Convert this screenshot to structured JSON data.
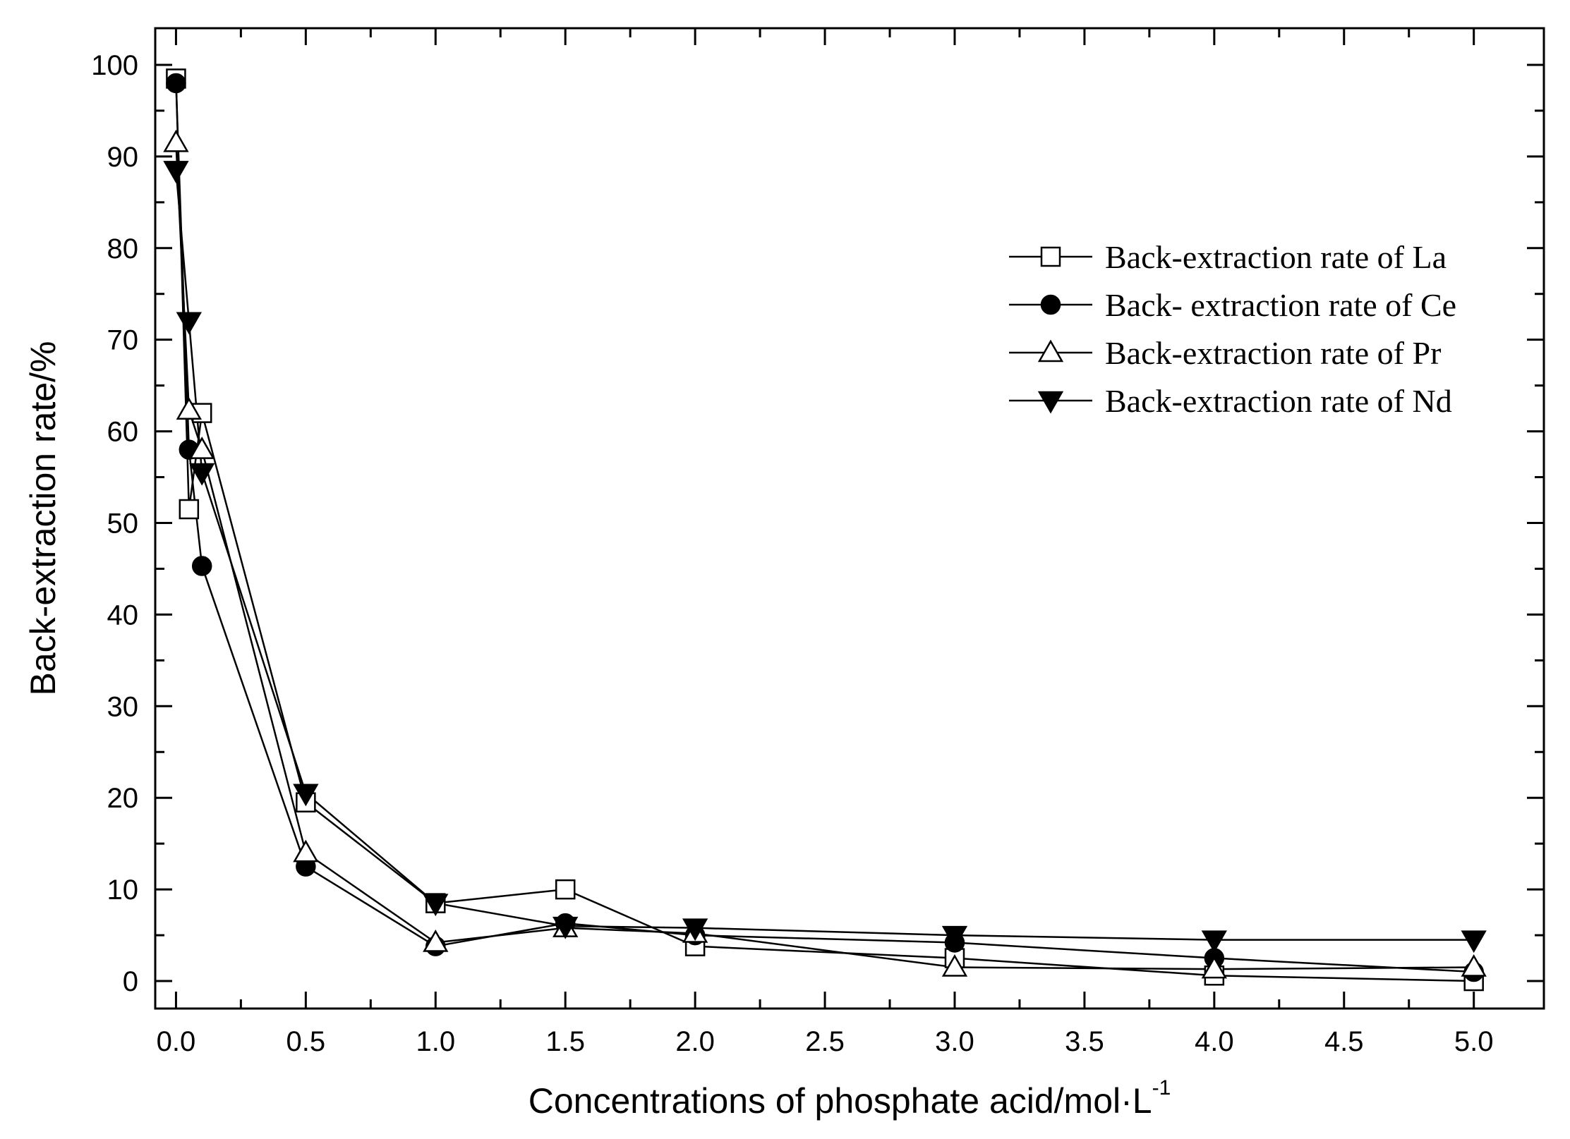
{
  "chart_data": {
    "type": "line",
    "xlabel": "Concentrations of phosphate acid/mol·L",
    "xlabel_superscript": "-1",
    "ylabel": "Back-extraction rate/%",
    "xlim": [
      -0.08,
      5.27
    ],
    "ylim": [
      -3,
      104
    ],
    "xticks": [
      0.0,
      0.5,
      1.0,
      1.5,
      2.0,
      2.5,
      3.0,
      3.5,
      4.0,
      4.5,
      5.0
    ],
    "xtick_labels": [
      "0.0",
      "0.5",
      "1.0",
      "1.5",
      "2.0",
      "2.5",
      "3.0",
      "3.5",
      "4.0",
      "4.5",
      "5.0"
    ],
    "yticks": [
      0,
      10,
      20,
      30,
      40,
      50,
      60,
      70,
      80,
      90,
      100
    ],
    "ytick_labels": [
      "0",
      "10",
      "20",
      "30",
      "40",
      "50",
      "60",
      "70",
      "80",
      "90",
      "100"
    ],
    "grid": false,
    "legend_position": "top-right",
    "x": [
      0.0,
      0.05,
      0.1,
      0.5,
      1.0,
      1.5,
      2.0,
      3.0,
      4.0,
      5.0
    ],
    "series": [
      {
        "name": "Back-extraction rate of La",
        "marker": "open-square",
        "values": [
          98.5,
          51.5,
          62.0,
          19.5,
          8.5,
          10.0,
          3.8,
          2.5,
          0.6,
          0.0
        ]
      },
      {
        "name": "Back- extraction rate of Ce",
        "marker": "filled-circle",
        "values": [
          98.0,
          58.0,
          45.3,
          12.5,
          3.8,
          6.3,
          5.0,
          4.2,
          2.5,
          1.0
        ]
      },
      {
        "name": "Back-extraction rate of Pr",
        "marker": "open-triangle-up",
        "values": [
          91.5,
          62.3,
          58.0,
          14.0,
          4.2,
          5.8,
          5.2,
          1.5,
          1.3,
          1.5
        ]
      },
      {
        "name": "Back-extraction rate of Nd",
        "marker": "filled-triangle-down",
        "values": [
          88.5,
          72.0,
          55.5,
          20.5,
          8.5,
          6.0,
          5.8,
          5.0,
          4.5,
          4.5
        ]
      }
    ]
  }
}
